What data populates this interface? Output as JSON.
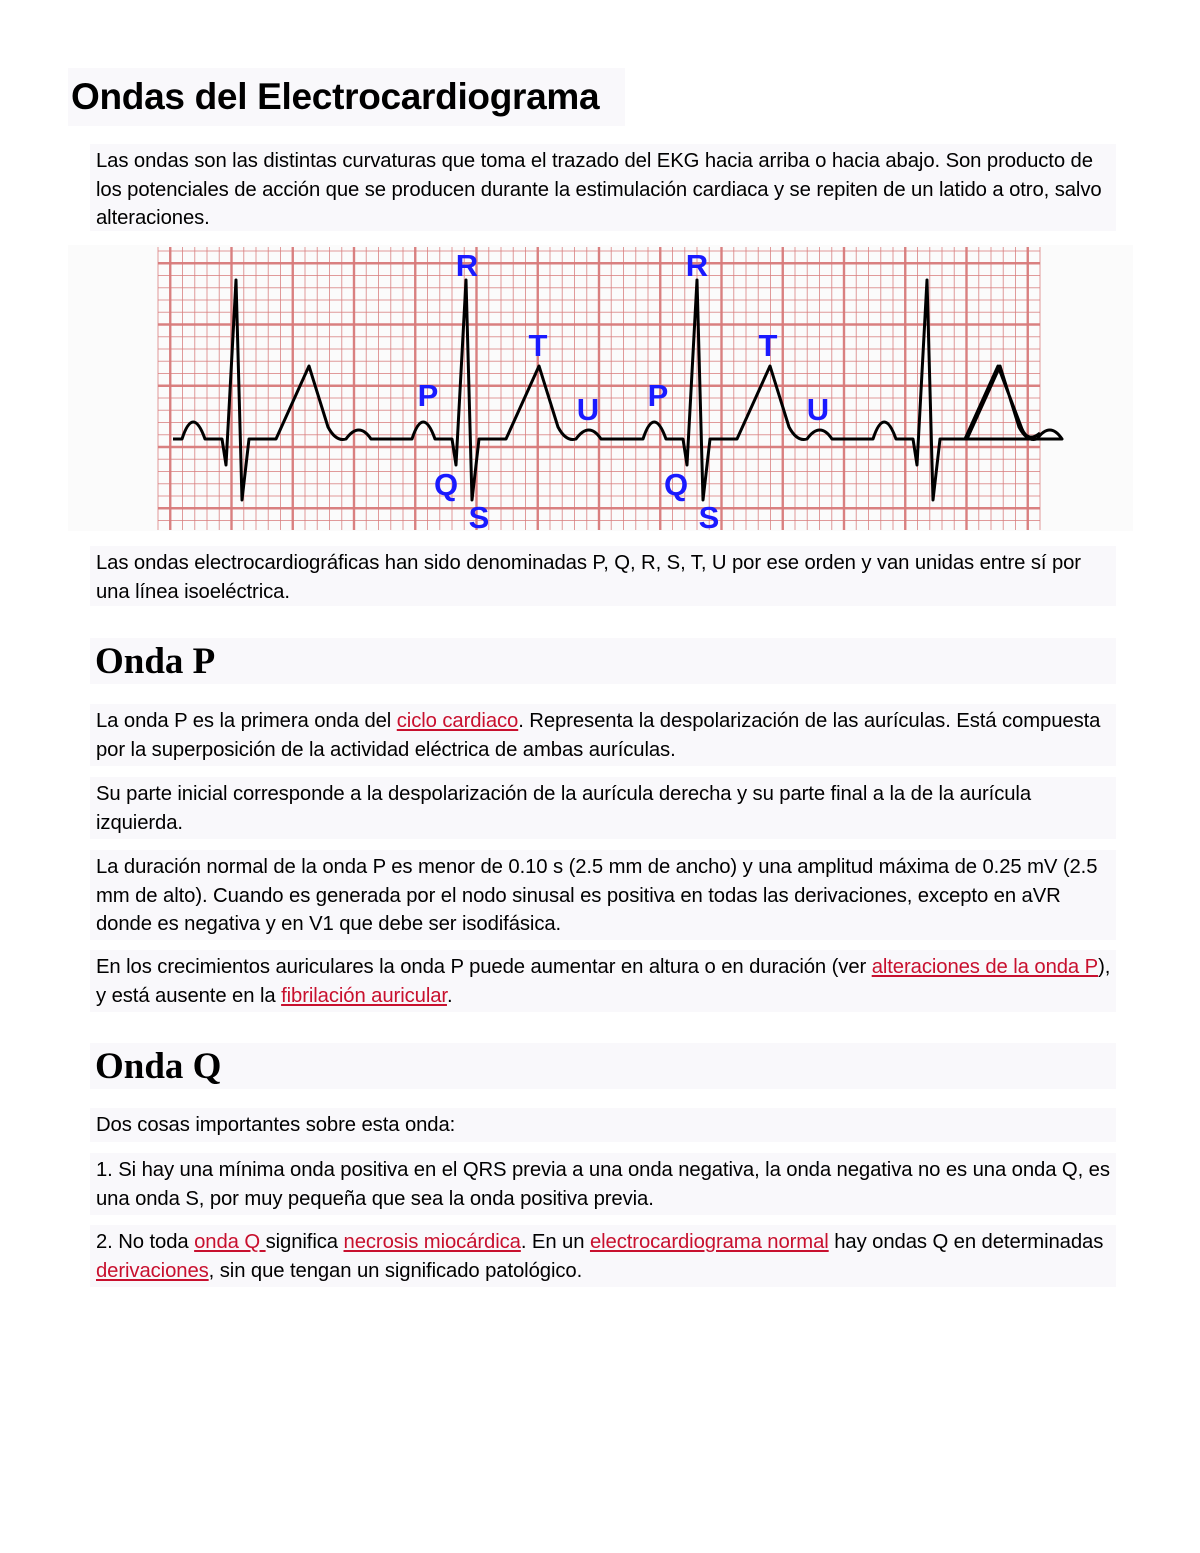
{
  "title": "Ondas del Electrocardiograma",
  "intro": [
    {
      "t": "Las ondas son las distintas curvaturas que toma el trazado del EKG hacia arriba o hacia abajo. Son producto de los potenciales de acción que se producen durante la estimulación cardiaca y se repiten de un latido a otro, salvo alteraciones."
    }
  ],
  "figure": {
    "labels": {
      "P": "P",
      "Q": "Q",
      "R": "R",
      "S": "S",
      "T": "T",
      "U": "U"
    },
    "colors": {
      "grid": "#d87a7a",
      "trace": "#000000",
      "labels": "#1a1aff"
    }
  },
  "after_figure": [
    {
      "t": "Las ondas electrocardiográficas han sido denominadas P, Q, R, S, T, U por ese orden y van unidas entre sí por una línea isoeléctrica."
    }
  ],
  "onda_p": {
    "heading": "Onda P",
    "paragraphs": [
      [
        {
          "t": "La onda P es la primera onda del "
        },
        {
          "t": "ciclo cardiaco",
          "link": true
        },
        {
          "t": ". Representa la despolarización de las aurículas. Está compuesta por la superposición de la actividad eléctrica de ambas aurículas."
        }
      ],
      [
        {
          "t": "Su parte inicial corresponde a la despolarización de la aurícula derecha y su parte final a la de la aurícula izquierda."
        }
      ],
      [
        {
          "t": "La duración normal de la onda P es menor de 0.10 s (2.5 mm de ancho) y una amplitud máxima de 0.25 mV (2.5 mm de alto). Cuando es generada por el nodo sinusal es positiva en todas las derivaciones, excepto en aVR donde es negativa y en V1 que debe ser isodifásica."
        }
      ],
      [
        {
          "t": "En los crecimientos auriculares la onda P puede aumentar en altura o en duración (ver "
        },
        {
          "t": "alteraciones de la onda P",
          "link": true
        },
        {
          "t": "), y está ausente en la "
        },
        {
          "t": "fibrilación auricular",
          "link": true
        },
        {
          "t": "."
        }
      ]
    ]
  },
  "onda_q": {
    "heading": "Onda Q",
    "paragraphs": [
      [
        {
          "t": "Dos cosas importantes sobre esta onda:"
        }
      ],
      [
        {
          "t": "1. Si hay una mínima onda positiva en el QRS previa a una onda negativa, la onda negativa no es una onda Q, es una onda S, por muy pequeña que sea la onda positiva previa."
        }
      ],
      [
        {
          "t": "2. No toda "
        },
        {
          "t": "onda Q ",
          "link": true
        },
        {
          "t": "significa "
        },
        {
          "t": "necrosis miocárdica",
          "link": true
        },
        {
          "t": ". En un "
        },
        {
          "t": "electrocardiograma normal",
          "link": true
        },
        {
          "t": " hay ondas Q en determinadas "
        },
        {
          "t": "derivaciones",
          "link": true
        },
        {
          "t": ", sin que tengan un significado patológico."
        }
      ]
    ]
  }
}
